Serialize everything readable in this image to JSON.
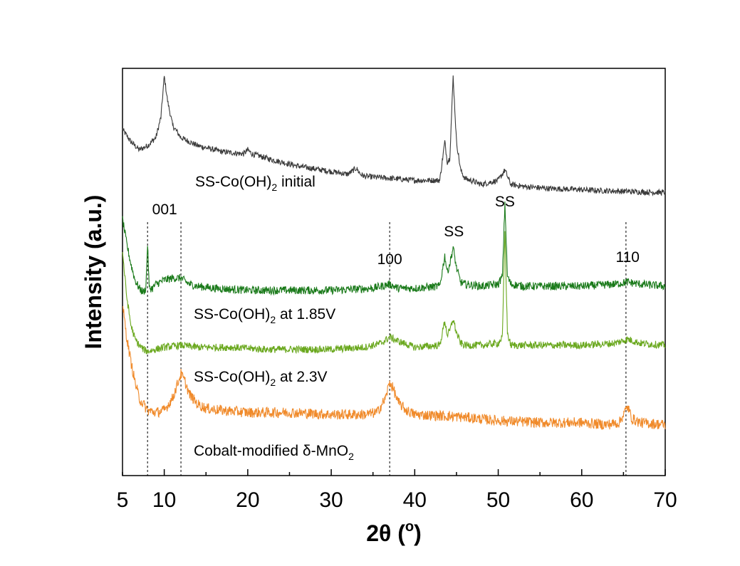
{
  "chart_data": {
    "type": "line",
    "xlabel": "2θ (°)",
    "xlabel_main": "2θ (",
    "xlabel_unit": "o",
    "xlabel_close": ")",
    "ylabel": "Intensity (a.u.)",
    "xlim": [
      5,
      70
    ],
    "ylim": [
      0,
      100
    ],
    "x_ticks": [
      5,
      10,
      20,
      30,
      40,
      50,
      60,
      70
    ],
    "y_ticks_shown": false,
    "legend": "none (series labelled inline)",
    "grid": false,
    "series": [
      {
        "name": "SS-Co(OH)2 initial",
        "label_parts": [
          "SS-Co(OH)",
          "2",
          " initial"
        ],
        "color": "#3a3a3a",
        "baseline": 78,
        "noise": 0.7,
        "x": [
          5,
          6,
          7,
          8,
          9,
          9.6,
          10,
          10.4,
          11,
          12,
          14,
          17,
          19.5,
          20,
          20.5,
          23,
          26,
          29,
          32,
          33,
          33.5,
          34,
          37,
          40,
          43,
          43.6,
          43.9,
          44.2,
          44.6,
          45.0,
          45.5,
          46,
          48,
          50,
          50.8,
          51.5,
          53,
          56,
          59,
          62,
          65,
          68,
          70
        ],
        "y": [
          85,
          82,
          80,
          81,
          83,
          88,
          98,
          92,
          86,
          83,
          81,
          79.5,
          79,
          80,
          79,
          77.5,
          76,
          75,
          74,
          75.5,
          74,
          73.5,
          73,
          72.5,
          72.5,
          82,
          77,
          78,
          98,
          82,
          75,
          73,
          71.5,
          72.5,
          75,
          71.5,
          71,
          70.5,
          70.3,
          70,
          69.8,
          69.6,
          69.5
        ]
      },
      {
        "name": "SS-Co(OH)2 at 1.85V",
        "label_parts": [
          "SS-Co(OH)",
          "2",
          " at 1.85V"
        ],
        "color": "#1a7a1a",
        "baseline": 46,
        "noise": 1.0,
        "x": [
          5,
          5.5,
          6,
          6.5,
          7,
          7.5,
          7.8,
          8.0,
          8.2,
          8.6,
          9,
          10,
          11,
          12,
          13,
          14,
          16,
          20,
          25,
          30,
          35,
          37,
          38,
          40,
          43,
          43.6,
          43.9,
          44.2,
          44.6,
          45.0,
          45.5,
          46,
          48,
          50,
          50.5,
          50.8,
          51.1,
          51.5,
          53,
          56,
          60,
          64,
          65.5,
          67,
          70
        ],
        "y": [
          63,
          57,
          52,
          48,
          46,
          45,
          46,
          57,
          46,
          46,
          47,
          48,
          48.5,
          48.5,
          47,
          46.5,
          46,
          45.5,
          45.5,
          45.5,
          46,
          47,
          46,
          46,
          46.5,
          54,
          50,
          52,
          56,
          51,
          47.5,
          47,
          46.5,
          47,
          49,
          67,
          49,
          47,
          46.5,
          46.5,
          46.5,
          47,
          47.5,
          47,
          46.5
        ]
      },
      {
        "name": "SS-Co(OH)2 at 2.3V",
        "label_parts": [
          "SS-Co(OH)",
          "2",
          " at 2.3V"
        ],
        "color": "#6aa81e",
        "baseline": 30,
        "noise": 0.9,
        "x": [
          5,
          5.5,
          6,
          6.5,
          7,
          7.5,
          8,
          10,
          12,
          14,
          18,
          22,
          26,
          30,
          34,
          36,
          37,
          38,
          40,
          43,
          43.6,
          43.9,
          44.2,
          44.6,
          45.0,
          45.5,
          46,
          48,
          50,
          50.5,
          50.8,
          51.1,
          51.5,
          53,
          56,
          60,
          64,
          65.5,
          67,
          70
        ],
        "y": [
          55,
          44,
          37,
          33.5,
          32,
          31,
          30.5,
          31.5,
          32,
          31.5,
          31.5,
          31,
          31,
          31,
          31.5,
          32.5,
          34,
          33,
          31.5,
          32,
          38,
          34.5,
          35.5,
          38.5,
          35,
          32.5,
          32,
          32,
          32.5,
          34,
          60,
          35,
          32,
          32,
          32,
          32,
          32.5,
          33.5,
          32.5,
          32
        ]
      },
      {
        "name": "Cobalt-modified δ-MnO2",
        "label_parts": [
          "Cobalt-modified δ-MnO",
          "2",
          ""
        ],
        "color": "#f08a2a",
        "baseline": 14,
        "noise": 1.3,
        "x": [
          5,
          5.5,
          6,
          6.5,
          7,
          8,
          9,
          10,
          11,
          11.5,
          12,
          12.5,
          13,
          14,
          15,
          17,
          20,
          25,
          30,
          34,
          35.5,
          36.5,
          37,
          37.5,
          38,
          39,
          40,
          45,
          50,
          55,
          60,
          63,
          64.5,
          65,
          65.5,
          66,
          67,
          70
        ],
        "y": [
          42,
          34,
          28,
          23,
          19,
          16,
          15.5,
          16,
          19,
          22,
          25,
          23,
          20,
          17.5,
          16.5,
          16,
          15.5,
          15.5,
          15,
          15,
          15.5,
          19,
          23,
          21,
          18,
          16,
          15,
          14.5,
          13.5,
          13,
          13,
          12.5,
          13,
          15,
          17,
          14,
          13,
          12.5
        ]
      }
    ],
    "annotations": [
      {
        "text": "001",
        "x": 8.0
      },
      {
        "text": "100",
        "x": 37.0
      },
      {
        "text": "SS",
        "x": 44.0
      },
      {
        "text": "SS",
        "x": 50.8
      },
      {
        "text": "110",
        "x": 65.5
      }
    ],
    "reference_lines": [
      8.0,
      12.0,
      37.0,
      65.3
    ]
  }
}
